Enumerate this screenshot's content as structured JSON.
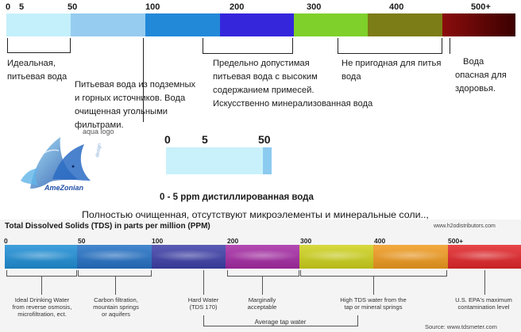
{
  "top_scale": {
    "ticks": [
      "0",
      "5",
      "50",
      "100",
      "200",
      "300",
      "400",
      "500+"
    ],
    "segments": [
      {
        "color": "#c4f0fb"
      },
      {
        "color": "#96ccf0"
      },
      {
        "color": "#2289d8"
      },
      {
        "color": "#3526dc"
      },
      {
        "color": "#7fd02a"
      },
      {
        "color": "#7c7d16"
      },
      {
        "gradient": [
          "#8b0d0d",
          "#3b0000"
        ]
      }
    ],
    "descriptions": [
      {
        "lines": [
          "Идеальная,",
          "питьевая вода"
        ]
      },
      {
        "lines": [
          "Питьевая вода из подземных",
          "и горных источников. Вода",
          "очищенная угольными",
          "фильтрами."
        ]
      },
      {
        "lines": [
          "Предельно допустимая",
          "питьевая вода с высоким",
          "содержанием примесей."
        ]
      },
      {
        "lines": [
          "Искусственно минерализованная вода"
        ]
      },
      {
        "lines": [
          "Не пригодная для питья",
          "вода"
        ]
      },
      {
        "lines": [
          "Вода",
          "опасная для",
          "здоровья."
        ]
      }
    ]
  },
  "mini_scale": {
    "ticks": [
      "0",
      "5",
      "50"
    ],
    "caption": "0 - 5 ppm дистиллированная вода"
  },
  "logo_text": "AmeZonian",
  "watermark": "aqua logo",
  "subtitle": "Полностью очищенная, отсутствуют микроэлементы и минеральные соли..,",
  "bottom_chart": {
    "title": "Total Dissolved Solids (TDS) in parts per million (PPM)",
    "source_top": "www.h2odistributors.com",
    "ticks": [
      "0",
      "50",
      "100",
      "200",
      "300",
      "400",
      "500+"
    ],
    "segments": [
      {
        "color": "#1f8fd6"
      },
      {
        "color": "#2572c6"
      },
      {
        "color": "#3d3fa8"
      },
      {
        "color": "#a62ba5"
      },
      {
        "color": "#cfd31c"
      },
      {
        "color": "#f19b1f"
      },
      {
        "color": "#e3262a"
      }
    ],
    "labels": [
      {
        "lines": [
          "Ideal Drinking Water",
          "from reverse osmosis,",
          "microfiltration, ect."
        ]
      },
      {
        "lines": [
          "Carbon filtration,",
          "mountain springs",
          "or aquifers"
        ]
      },
      {
        "lines": [
          "Hard Water",
          "(TDS 170)"
        ]
      },
      {
        "lines": [
          "Marginally",
          "acceptable"
        ]
      },
      {
        "lines": [
          "High TDS water from the",
          "tap or mineral springs"
        ]
      },
      {
        "lines": [
          "U.S. EPA's maximum",
          "contamination level"
        ]
      }
    ],
    "range_label": "Average tap water",
    "source_bottom": "Source: www.tdsmeter.com"
  }
}
